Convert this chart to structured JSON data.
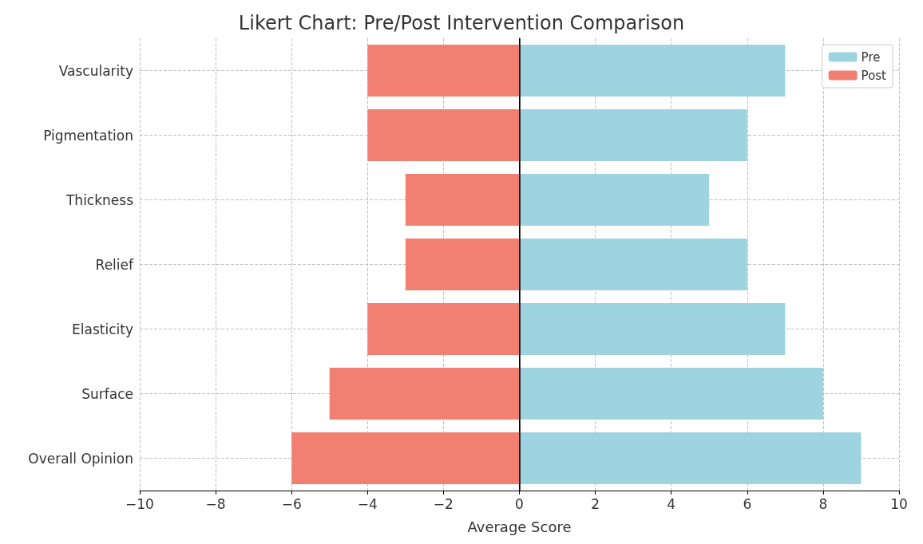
{
  "chart_data": {
    "type": "bar",
    "orientation": "horizontal",
    "stacked": true,
    "title": "Likert Chart: Pre/Post Intervention Comparison",
    "xlabel": "Average Score",
    "categories": [
      "Vascularity",
      "Pigmentation",
      "Thickness",
      "Relief",
      "Elasticity",
      "Surface",
      "Overall Opinion"
    ],
    "series": [
      {
        "name": "Pre",
        "color": "#9ed3e0",
        "values": [
          7,
          6,
          5,
          6,
          7,
          8,
          9
        ]
      },
      {
        "name": "Post",
        "color": "#f28072",
        "values": [
          -4,
          -4,
          -3,
          -3,
          -4,
          -5,
          -6
        ]
      }
    ],
    "xlim": [
      -10,
      10
    ],
    "xticks": [
      {
        "value": -10,
        "label": "−10"
      },
      {
        "value": -8,
        "label": "−8"
      },
      {
        "value": -6,
        "label": "−6"
      },
      {
        "value": -4,
        "label": "−4"
      },
      {
        "value": -2,
        "label": "−2"
      },
      0,
      2,
      4,
      6,
      8,
      10
    ],
    "ref_lines": [
      {
        "axis": "x",
        "value": 0,
        "color": "#000000"
      }
    ],
    "grid": true,
    "legend": "top right"
  }
}
